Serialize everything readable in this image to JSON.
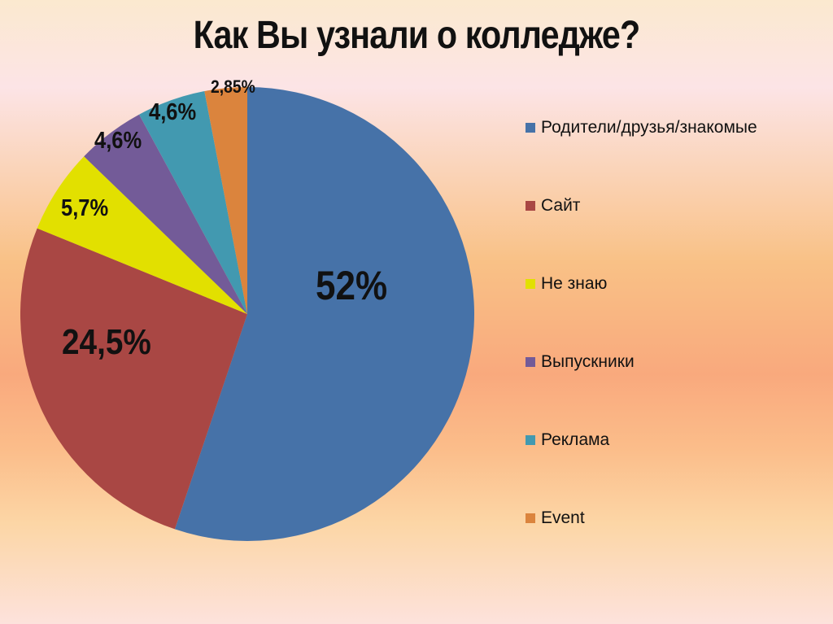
{
  "title": "Как Вы узнали о колледже?",
  "chart_data": {
    "type": "pie",
    "title": "Как Вы узнали о колледже?",
    "categories": [
      "Родители/друзья/знакомые",
      "Сайт",
      "Не знаю",
      "Выпускники",
      "Реклама",
      "Event"
    ],
    "values": [
      52,
      24.5,
      5.7,
      4.6,
      4.6,
      2.85
    ],
    "data_labels": [
      "52%",
      "24,5%",
      "5,7%",
      "4,6%",
      "4,6%",
      "2,85%"
    ],
    "colors": [
      "#4672a8",
      "#a94744",
      "#e2e000",
      "#735b98",
      "#4299b0",
      "#db843d"
    ],
    "legend_position": "right",
    "start_angle": "12 o'clock, clockwise"
  },
  "legend": [
    {
      "label": "Родители/друзья/знакомые",
      "color": "#4672a8"
    },
    {
      "label": "Сайт",
      "color": "#a94744"
    },
    {
      "label": "Не знаю",
      "color": "#e2e000"
    },
    {
      "label": "Выпускники",
      "color": "#735b98"
    },
    {
      "label": "Реклама",
      "color": "#4299b0"
    },
    {
      "label": "Event",
      "color": "#db843d"
    }
  ],
  "labels": {
    "l0": "52%",
    "l1": "24,5%",
    "l2": "5,7%",
    "l3": "4,6%",
    "l4": "4,6%",
    "l5": "2,85%"
  }
}
